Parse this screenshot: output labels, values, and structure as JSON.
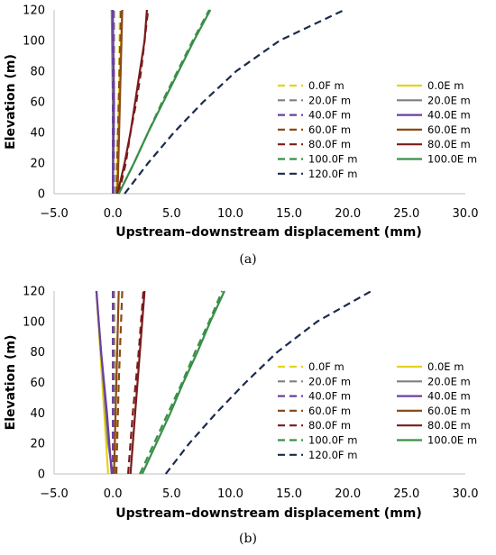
{
  "chart_data": [
    {
      "type": "line",
      "caption": "(a)",
      "xlabel": "Upstream–downstream displacement (mm)",
      "ylabel": "Elevation (m)",
      "xlim": [
        -5.0,
        30.0
      ],
      "ylim": [
        0,
        120
      ],
      "xticks": [
        "−5.0",
        "0.0",
        "5.0",
        "10.0",
        "15.0",
        "20.0",
        "25.0",
        "30.0"
      ],
      "yticks": [
        "0",
        "20",
        "40",
        "60",
        "80",
        "100",
        "120"
      ],
      "legend": "right",
      "grid": false,
      "series": [
        {
          "name": "0.0F m",
          "color": "#e4d31b",
          "dash": true,
          "points": [
            [
              0.4,
              0
            ],
            [
              0.5,
              60
            ],
            [
              0.6,
              120
            ]
          ]
        },
        {
          "name": "0.0E m",
          "color": "#e4d31b",
          "dash": false,
          "points": [
            [
              0.3,
              0
            ],
            [
              0.5,
              60
            ],
            [
              0.8,
              120
            ]
          ]
        },
        {
          "name": "20.0F m",
          "color": "#7f7f7f",
          "dash": true,
          "points": [
            [
              0.1,
              0
            ],
            [
              0.1,
              60
            ],
            [
              0.1,
              120
            ]
          ]
        },
        {
          "name": "20.0E m",
          "color": "#7f7f7f",
          "dash": false,
          "points": [
            [
              0.0,
              0
            ],
            [
              0.0,
              60
            ],
            [
              -0.1,
              120
            ]
          ]
        },
        {
          "name": "40.0F m",
          "color": "#6b3fa0",
          "dash": true,
          "points": [
            [
              0.0,
              0
            ],
            [
              0.0,
              60
            ],
            [
              0.0,
              120
            ]
          ]
        },
        {
          "name": "40.0E m",
          "color": "#6b3fa0",
          "dash": false,
          "points": [
            [
              0.0,
              0
            ],
            [
              0.1,
              60
            ],
            [
              0.0,
              120
            ]
          ]
        },
        {
          "name": "60.0F m",
          "color": "#8c4a16",
          "dash": true,
          "points": [
            [
              0.3,
              0
            ],
            [
              0.5,
              60
            ],
            [
              0.7,
              120
            ]
          ]
        },
        {
          "name": "60.0E m",
          "color": "#8c4a16",
          "dash": false,
          "points": [
            [
              0.4,
              0
            ],
            [
              0.6,
              60
            ],
            [
              0.8,
              120
            ]
          ]
        },
        {
          "name": "80.0F m",
          "color": "#7b1a1a",
          "dash": true,
          "points": [
            [
              0.5,
              0
            ],
            [
              1.1,
              20
            ],
            [
              1.5,
              40
            ],
            [
              2.0,
              60
            ],
            [
              2.4,
              80
            ],
            [
              2.7,
              100
            ],
            [
              3.0,
              120
            ]
          ]
        },
        {
          "name": "80.0E m",
          "color": "#7b1a1a",
          "dash": false,
          "points": [
            [
              0.4,
              0
            ],
            [
              1.0,
              20
            ],
            [
              1.5,
              40
            ],
            [
              1.9,
              60
            ],
            [
              2.3,
              80
            ],
            [
              2.7,
              100
            ],
            [
              2.9,
              120
            ]
          ]
        },
        {
          "name": "100.0F m",
          "color": "#3a8f48",
          "dash": true,
          "points": [
            [
              0.5,
              0
            ],
            [
              1.8,
              20
            ],
            [
              3.0,
              40
            ],
            [
              4.2,
              60
            ],
            [
              5.5,
              80
            ],
            [
              6.8,
              100
            ],
            [
              8.2,
              120
            ]
          ]
        },
        {
          "name": "100.0E m",
          "color": "#3a8f48",
          "dash": false,
          "points": [
            [
              0.5,
              0
            ],
            [
              1.8,
              20
            ],
            [
              3.0,
              40
            ],
            [
              4.3,
              60
            ],
            [
              5.6,
              80
            ],
            [
              6.9,
              100
            ],
            [
              8.3,
              120
            ]
          ]
        },
        {
          "name": "120.0F m",
          "color": "#1b2a4e",
          "dash": true,
          "points": [
            [
              1.0,
              0
            ],
            [
              3.0,
              20
            ],
            [
              5.2,
              40
            ],
            [
              7.7,
              60
            ],
            [
              10.5,
              80
            ],
            [
              14.2,
              100
            ],
            [
              19.7,
              120
            ]
          ]
        }
      ]
    },
    {
      "type": "line",
      "caption": "(b)",
      "xlabel": "Upstream–downstream displacement (mm)",
      "ylabel": "Elevation (m)",
      "xlim": [
        -5.0,
        30.0
      ],
      "ylim": [
        0,
        120
      ],
      "xticks": [
        "−5.0",
        "0.0",
        "5.0",
        "10.0",
        "15.0",
        "20.0",
        "25.0",
        "30.0"
      ],
      "yticks": [
        "0",
        "20",
        "40",
        "60",
        "80",
        "100",
        "120"
      ],
      "legend": "right",
      "grid": false,
      "series": [
        {
          "name": "0.0F m",
          "color": "#e4d31b",
          "dash": true,
          "points": [
            [
              0.3,
              0
            ],
            [
              0.2,
              60
            ],
            [
              0.1,
              120
            ]
          ]
        },
        {
          "name": "0.0E m",
          "color": "#e4d31b",
          "dash": false,
          "points": [
            [
              -0.4,
              0
            ],
            [
              -0.9,
              60
            ],
            [
              -1.4,
              120
            ]
          ]
        },
        {
          "name": "20.0F m",
          "color": "#7f7f7f",
          "dash": true,
          "points": [
            [
              0.2,
              0
            ],
            [
              0.1,
              60
            ],
            [
              0.1,
              120
            ]
          ]
        },
        {
          "name": "20.0E m",
          "color": "#7f7f7f",
          "dash": false,
          "points": [
            [
              0.0,
              0
            ],
            [
              -0.4,
              20
            ],
            [
              -0.8,
              60
            ],
            [
              -1.4,
              120
            ]
          ]
        },
        {
          "name": "40.0F m",
          "color": "#6b3fa0",
          "dash": true,
          "points": [
            [
              0.0,
              0
            ],
            [
              0.0,
              60
            ],
            [
              0.0,
              120
            ]
          ]
        },
        {
          "name": "40.0E m",
          "color": "#6b3fa0",
          "dash": false,
          "points": [
            [
              -0.1,
              0
            ],
            [
              -0.5,
              40
            ],
            [
              -1.0,
              80
            ],
            [
              -1.4,
              120
            ]
          ]
        },
        {
          "name": "60.0F m",
          "color": "#8c4a16",
          "dash": true,
          "points": [
            [
              0.3,
              0
            ],
            [
              0.5,
              60
            ],
            [
              0.8,
              120
            ]
          ]
        },
        {
          "name": "60.0E m",
          "color": "#8c4a16",
          "dash": false,
          "points": [
            [
              0.1,
              0
            ],
            [
              0.3,
              60
            ],
            [
              0.5,
              120
            ]
          ]
        },
        {
          "name": "80.0F m",
          "color": "#7b1a1a",
          "dash": true,
          "points": [
            [
              1.3,
              0
            ],
            [
              1.7,
              40
            ],
            [
              2.2,
              80
            ],
            [
              2.6,
              120
            ]
          ]
        },
        {
          "name": "80.0E m",
          "color": "#7b1a1a",
          "dash": false,
          "points": [
            [
              1.5,
              0
            ],
            [
              1.9,
              40
            ],
            [
              2.3,
              80
            ],
            [
              2.7,
              120
            ]
          ]
        },
        {
          "name": "100.0F m",
          "color": "#3a8f48",
          "dash": true,
          "points": [
            [
              2.3,
              0
            ],
            [
              3.5,
              20
            ],
            [
              4.7,
              40
            ],
            [
              5.9,
              60
            ],
            [
              7.0,
              80
            ],
            [
              8.2,
              100
            ],
            [
              9.3,
              120
            ]
          ]
        },
        {
          "name": "100.0E m",
          "color": "#3a8f48",
          "dash": false,
          "points": [
            [
              2.5,
              0
            ],
            [
              3.7,
              20
            ],
            [
              4.9,
              40
            ],
            [
              6.0,
              60
            ],
            [
              7.2,
              80
            ],
            [
              8.3,
              100
            ],
            [
              9.5,
              120
            ]
          ]
        },
        {
          "name": "120.0F m",
          "color": "#1b2a4e",
          "dash": true,
          "points": [
            [
              4.5,
              0
            ],
            [
              6.5,
              20
            ],
            [
              8.8,
              40
            ],
            [
              11.3,
              60
            ],
            [
              14.0,
              80
            ],
            [
              17.4,
              100
            ],
            [
              22.0,
              120
            ]
          ]
        }
      ]
    }
  ]
}
